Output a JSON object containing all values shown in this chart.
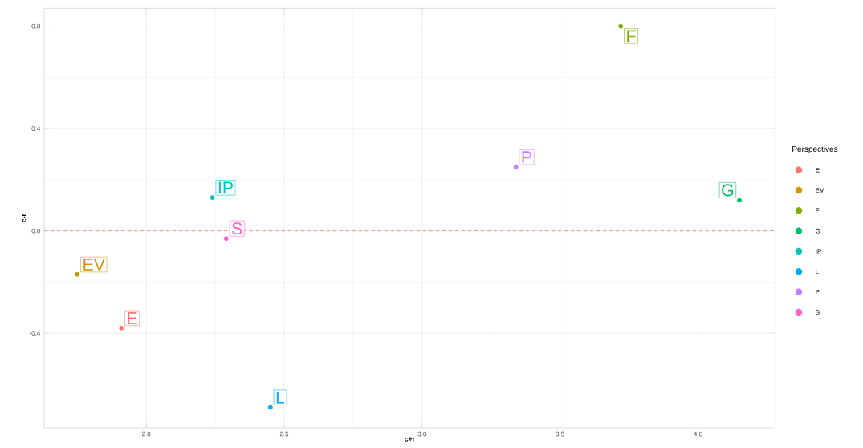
{
  "chart_data": {
    "type": "scatter",
    "xlabel": "c+r",
    "ylabel": "c-r",
    "legend_title": "Perspectives",
    "legend": "right",
    "marker": "circle",
    "grid": true,
    "xlim": [
      1.63,
      4.28
    ],
    "ylim": [
      -0.77,
      0.87
    ],
    "xticks": [
      {
        "value": 2,
        "label": "2.0"
      },
      {
        "value": 2.5,
        "label": "2.5"
      },
      {
        "value": 3,
        "label": "3.0"
      },
      {
        "value": 3.5,
        "label": "3.5"
      },
      {
        "value": 4,
        "label": "4.0"
      }
    ],
    "yticks": [
      {
        "value": -0.4,
        "label": "-0.4"
      },
      {
        "value": 0,
        "label": "0.0"
      },
      {
        "value": 0.4,
        "label": "0.4"
      },
      {
        "value": 0.8,
        "label": "0.8"
      }
    ],
    "ref_lines": [
      {
        "axis": "y",
        "value": 0,
        "color": "#f8766d",
        "line_style": "dashed"
      }
    ],
    "series": [
      {
        "name": "E",
        "color": "#f8766d",
        "x": [
          1.91
        ],
        "values": [
          -0.38
        ]
      },
      {
        "name": "EV",
        "color": "#cd9600",
        "x": [
          1.75
        ],
        "values": [
          -0.17
        ]
      },
      {
        "name": "F",
        "color": "#7cae00",
        "x": [
          3.72
        ],
        "values": [
          0.8
        ]
      },
      {
        "name": "G",
        "color": "#00be67",
        "x": [
          4.15
        ],
        "values": [
          0.12
        ]
      },
      {
        "name": "IP",
        "color": "#00bfc4",
        "x": [
          2.24
        ],
        "values": [
          0.13
        ]
      },
      {
        "name": "L",
        "color": "#00a9ff",
        "x": [
          2.45
        ],
        "values": [
          -0.69
        ]
      },
      {
        "name": "P",
        "color": "#c77cff",
        "x": [
          3.34
        ],
        "values": [
          0.25
        ]
      },
      {
        "name": "S",
        "color": "#ff61cc",
        "x": [
          2.29
        ],
        "values": [
          -0.03
        ]
      }
    ]
  }
}
